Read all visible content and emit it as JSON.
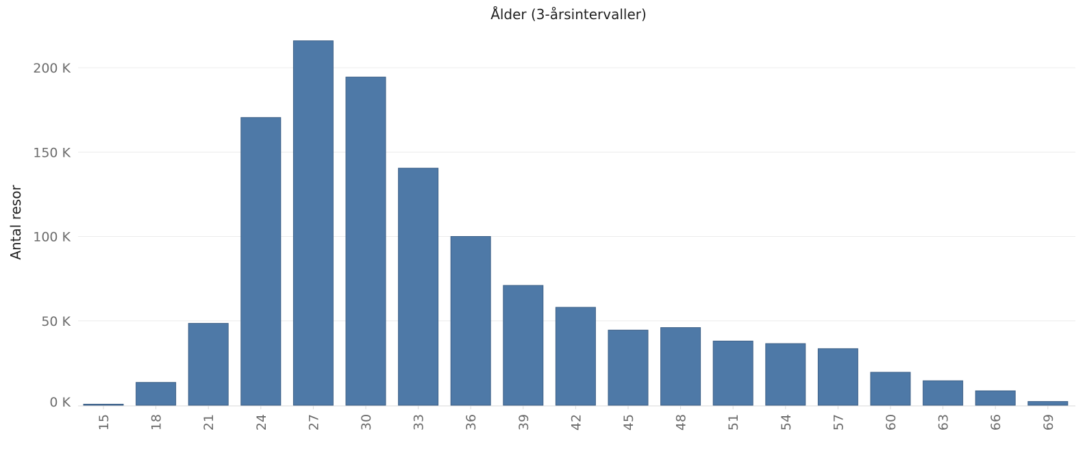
{
  "chart_data": {
    "type": "bar",
    "title": "Ålder (3-årsintervaller)",
    "xlabel": "",
    "ylabel": "Antal resor",
    "categories": [
      "15",
      "18",
      "21",
      "24",
      "27",
      "30",
      "33",
      "36",
      "39",
      "42",
      "45",
      "48",
      "51",
      "54",
      "57",
      "60",
      "63",
      "66",
      "69"
    ],
    "values": [
      500,
      13500,
      48500,
      170500,
      216000,
      194500,
      140500,
      100000,
      71000,
      58000,
      44500,
      46000,
      38000,
      36500,
      33500,
      19500,
      14500,
      8500,
      2200
    ],
    "ylim": [
      0,
      220000
    ],
    "yticks": [
      0,
      50000,
      100000,
      150000,
      200000
    ],
    "ytick_labels": [
      "0 K",
      "50 K",
      "100 K",
      "150 K",
      "200 K"
    ],
    "grid": true,
    "bar_color": "#4e79a7"
  }
}
